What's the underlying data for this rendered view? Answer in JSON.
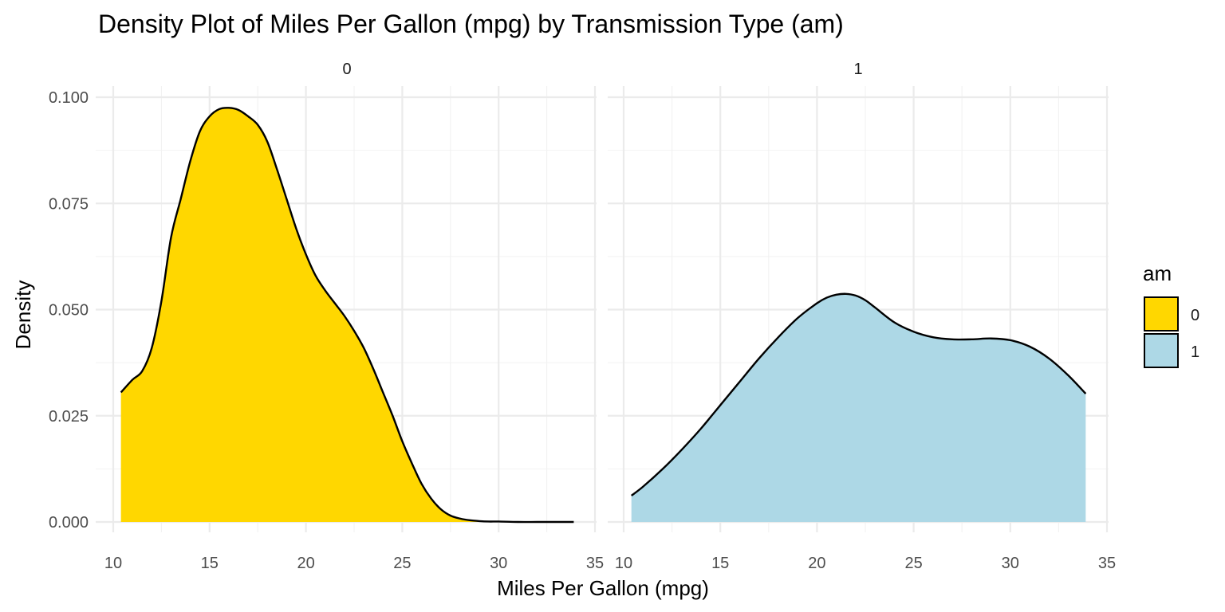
{
  "chart_data": {
    "type": "area",
    "subtype": "density",
    "title": "Density Plot of Miles Per Gallon (mpg) by Transmission Type (am)",
    "xlabel": "Miles Per Gallon (mpg)",
    "ylabel": "Density",
    "xlim": [
      10,
      35
    ],
    "ylim": [
      0,
      0.1
    ],
    "x_ticks": [
      "10",
      "15",
      "20",
      "25",
      "30",
      "35"
    ],
    "y_ticks": [
      "0.000",
      "0.025",
      "0.050",
      "0.075",
      "0.100"
    ],
    "grid": true,
    "legend": {
      "title": "am",
      "position": "right",
      "entries": [
        {
          "label": "0",
          "color": "#FFD700"
        },
        {
          "label": "1",
          "color": "#ADD8E6"
        }
      ]
    },
    "facets": [
      {
        "label": "0",
        "color": "#FFD700",
        "x": [
          10.4,
          11.0,
          11.5,
          12.0,
          12.5,
          13.0,
          13.5,
          14.0,
          14.5,
          15.0,
          15.5,
          16.0,
          16.5,
          17.0,
          17.5,
          18.0,
          18.5,
          19.0,
          19.5,
          20.0,
          20.5,
          21.0,
          21.5,
          22.0,
          22.5,
          23.0,
          23.5,
          24.0,
          24.5,
          25.0,
          25.5,
          26.0,
          26.5,
          27.0,
          27.5,
          28.0,
          28.5,
          29.0,
          29.5,
          30.0,
          31.0,
          32.0,
          33.0,
          33.9
        ],
        "y": [
          0.0305,
          0.0335,
          0.0355,
          0.041,
          0.052,
          0.067,
          0.076,
          0.085,
          0.092,
          0.0955,
          0.0972,
          0.0975,
          0.097,
          0.0955,
          0.0935,
          0.0895,
          0.083,
          0.076,
          0.069,
          0.063,
          0.058,
          0.0545,
          0.0515,
          0.0485,
          0.045,
          0.041,
          0.036,
          0.0305,
          0.025,
          0.019,
          0.0138,
          0.009,
          0.0055,
          0.003,
          0.0015,
          0.0008,
          0.0004,
          0.0002,
          0.0001,
          0.0001,
          0.0,
          0.0,
          0.0,
          0.0
        ]
      },
      {
        "label": "1",
        "color": "#ADD8E6",
        "x": [
          10.4,
          11.0,
          12.0,
          13.0,
          14.0,
          15.0,
          16.0,
          17.0,
          18.0,
          19.0,
          20.0,
          20.5,
          21.0,
          21.5,
          22.0,
          22.5,
          23.0,
          24.0,
          25.0,
          26.0,
          27.0,
          28.0,
          29.0,
          30.0,
          31.0,
          32.0,
          33.0,
          33.9
        ],
        "y": [
          0.0062,
          0.0083,
          0.0124,
          0.017,
          0.022,
          0.0275,
          0.033,
          0.0385,
          0.0435,
          0.048,
          0.0515,
          0.0528,
          0.0535,
          0.0537,
          0.0533,
          0.0522,
          0.0505,
          0.047,
          0.0448,
          0.0435,
          0.043,
          0.043,
          0.0432,
          0.0428,
          0.0413,
          0.0385,
          0.0345,
          0.0302
        ]
      }
    ]
  }
}
